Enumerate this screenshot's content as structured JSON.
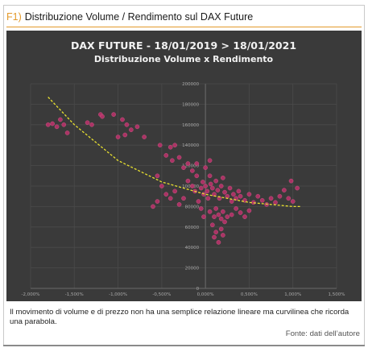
{
  "figure": {
    "number": "F1)",
    "title": "Distribuzione Volume / Rendimento sul DAX Future",
    "caption": "Il movimento di volume e di prezzo non ha una semplice relazione lineare ma curvilinea che ricorda una parabola.",
    "source": "Fonte: dati dell’autore"
  },
  "colors": {
    "accent": "#e39a2b",
    "chart_bg": "#3a3a3a",
    "grid": "#4a4a4a",
    "point": "#b8336a",
    "trend": "#e8e030",
    "tick_text": "#a8a8a8",
    "title_text": "#f2f2f2"
  },
  "chart_data": {
    "type": "scatter",
    "title": "DAX FUTURE - 18/01/2019 > 18/01/2021",
    "subtitle": "Distribuzione Volume x Rendimento",
    "xlabel": "",
    "ylabel": "",
    "xlim": [
      -2.0,
      1.5
    ],
    "ylim": [
      0,
      200000
    ],
    "x_ticks": [
      "-2,000%",
      "-1,500%",
      "-1,000%",
      "-0,500%",
      "0,000%",
      "0,500%",
      "1,000%",
      "1,500%"
    ],
    "y_ticks": [
      "0",
      "20000",
      "40000",
      "60000",
      "80000",
      "100000",
      "120000",
      "140000",
      "160000",
      "180000",
      "200000"
    ],
    "grid": true,
    "legend": "none",
    "trendline": {
      "type": "polynomial",
      "points": [
        [
          -1.8,
          187000
        ],
        [
          -1.5,
          160000
        ],
        [
          -1.0,
          125000
        ],
        [
          -0.5,
          104000
        ],
        [
          0.0,
          92000
        ],
        [
          0.5,
          84000
        ],
        [
          1.0,
          80000
        ],
        [
          1.1,
          80000
        ]
      ]
    },
    "points": [
      [
        -1.8,
        160000
      ],
      [
        -1.75,
        161000
      ],
      [
        -1.7,
        158000
      ],
      [
        -1.66,
        165000
      ],
      [
        -1.62,
        160000
      ],
      [
        -1.58,
        152000
      ],
      [
        -1.35,
        162000
      ],
      [
        -1.3,
        160000
      ],
      [
        -1.2,
        170000
      ],
      [
        -1.18,
        168000
      ],
      [
        -1.05,
        170000
      ],
      [
        -0.95,
        165000
      ],
      [
        -0.9,
        160000
      ],
      [
        -0.85,
        155000
      ],
      [
        -0.78,
        158000
      ],
      [
        -0.7,
        148000
      ],
      [
        -0.92,
        150000
      ],
      [
        -1.0,
        148000
      ],
      [
        -0.52,
        140000
      ],
      [
        -0.45,
        130000
      ],
      [
        -0.4,
        138000
      ],
      [
        -0.38,
        125000
      ],
      [
        -0.3,
        128000
      ],
      [
        -0.25,
        118000
      ],
      [
        -0.2,
        122000
      ],
      [
        -0.15,
        115000
      ],
      [
        -0.35,
        140000
      ],
      [
        -0.55,
        110000
      ],
      [
        -0.5,
        100000
      ],
      [
        -0.45,
        92000
      ],
      [
        -0.6,
        80000
      ],
      [
        -0.55,
        85000
      ],
      [
        -0.4,
        88000
      ],
      [
        -0.35,
        95000
      ],
      [
        -0.3,
        82000
      ],
      [
        -0.25,
        88000
      ],
      [
        -0.2,
        105000
      ],
      [
        -0.15,
        100000
      ],
      [
        -0.12,
        95000
      ],
      [
        -0.1,
        110000
      ],
      [
        -0.08,
        85000
      ],
      [
        -0.05,
        98000
      ],
      [
        -0.03,
        104000
      ],
      [
        -0.02,
        92000
      ],
      [
        0.0,
        100000
      ],
      [
        0.02,
        95000
      ],
      [
        0.03,
        88000
      ],
      [
        0.05,
        110000
      ],
      [
        0.06,
        102000
      ],
      [
        0.08,
        98000
      ],
      [
        0.1,
        92000
      ],
      [
        0.12,
        105000
      ],
      [
        0.14,
        96000
      ],
      [
        0.16,
        88000
      ],
      [
        0.18,
        100000
      ],
      [
        0.2,
        108000
      ],
      [
        0.22,
        94000
      ],
      [
        0.25,
        90000
      ],
      [
        0.28,
        98000
      ],
      [
        0.3,
        85000
      ],
      [
        0.32,
        92000
      ],
      [
        0.35,
        88000
      ],
      [
        0.38,
        95000
      ],
      [
        0.4,
        90000
      ],
      [
        0.45,
        86000
      ],
      [
        0.5,
        92000
      ],
      [
        0.55,
        84000
      ],
      [
        0.6,
        90000
      ],
      [
        0.65,
        86000
      ],
      [
        0.7,
        82000
      ],
      [
        0.75,
        88000
      ],
      [
        0.8,
        84000
      ],
      [
        0.85,
        90000
      ],
      [
        0.9,
        96000
      ],
      [
        0.95,
        88000
      ],
      [
        1.0,
        85000
      ],
      [
        1.05,
        98000
      ],
      [
        0.98,
        105000
      ],
      [
        0.05,
        75000
      ],
      [
        0.1,
        70000
      ],
      [
        0.12,
        78000
      ],
      [
        0.15,
        72000
      ],
      [
        0.18,
        68000
      ],
      [
        0.2,
        75000
      ],
      [
        0.22,
        65000
      ],
      [
        0.25,
        70000
      ],
      [
        0.08,
        62000
      ],
      [
        0.12,
        55000
      ],
      [
        0.18,
        58000
      ],
      [
        0.1,
        50000
      ],
      [
        0.15,
        45000
      ],
      [
        0.2,
        52000
      ],
      [
        -0.02,
        70000
      ],
      [
        -0.05,
        78000
      ],
      [
        0.3,
        72000
      ],
      [
        0.35,
        78000
      ],
      [
        0.4,
        74000
      ],
      [
        0.5,
        76000
      ],
      [
        0.45,
        70000
      ],
      [
        -0.1,
        122000
      ],
      [
        0.0,
        118000
      ],
      [
        0.05,
        125000
      ]
    ]
  }
}
